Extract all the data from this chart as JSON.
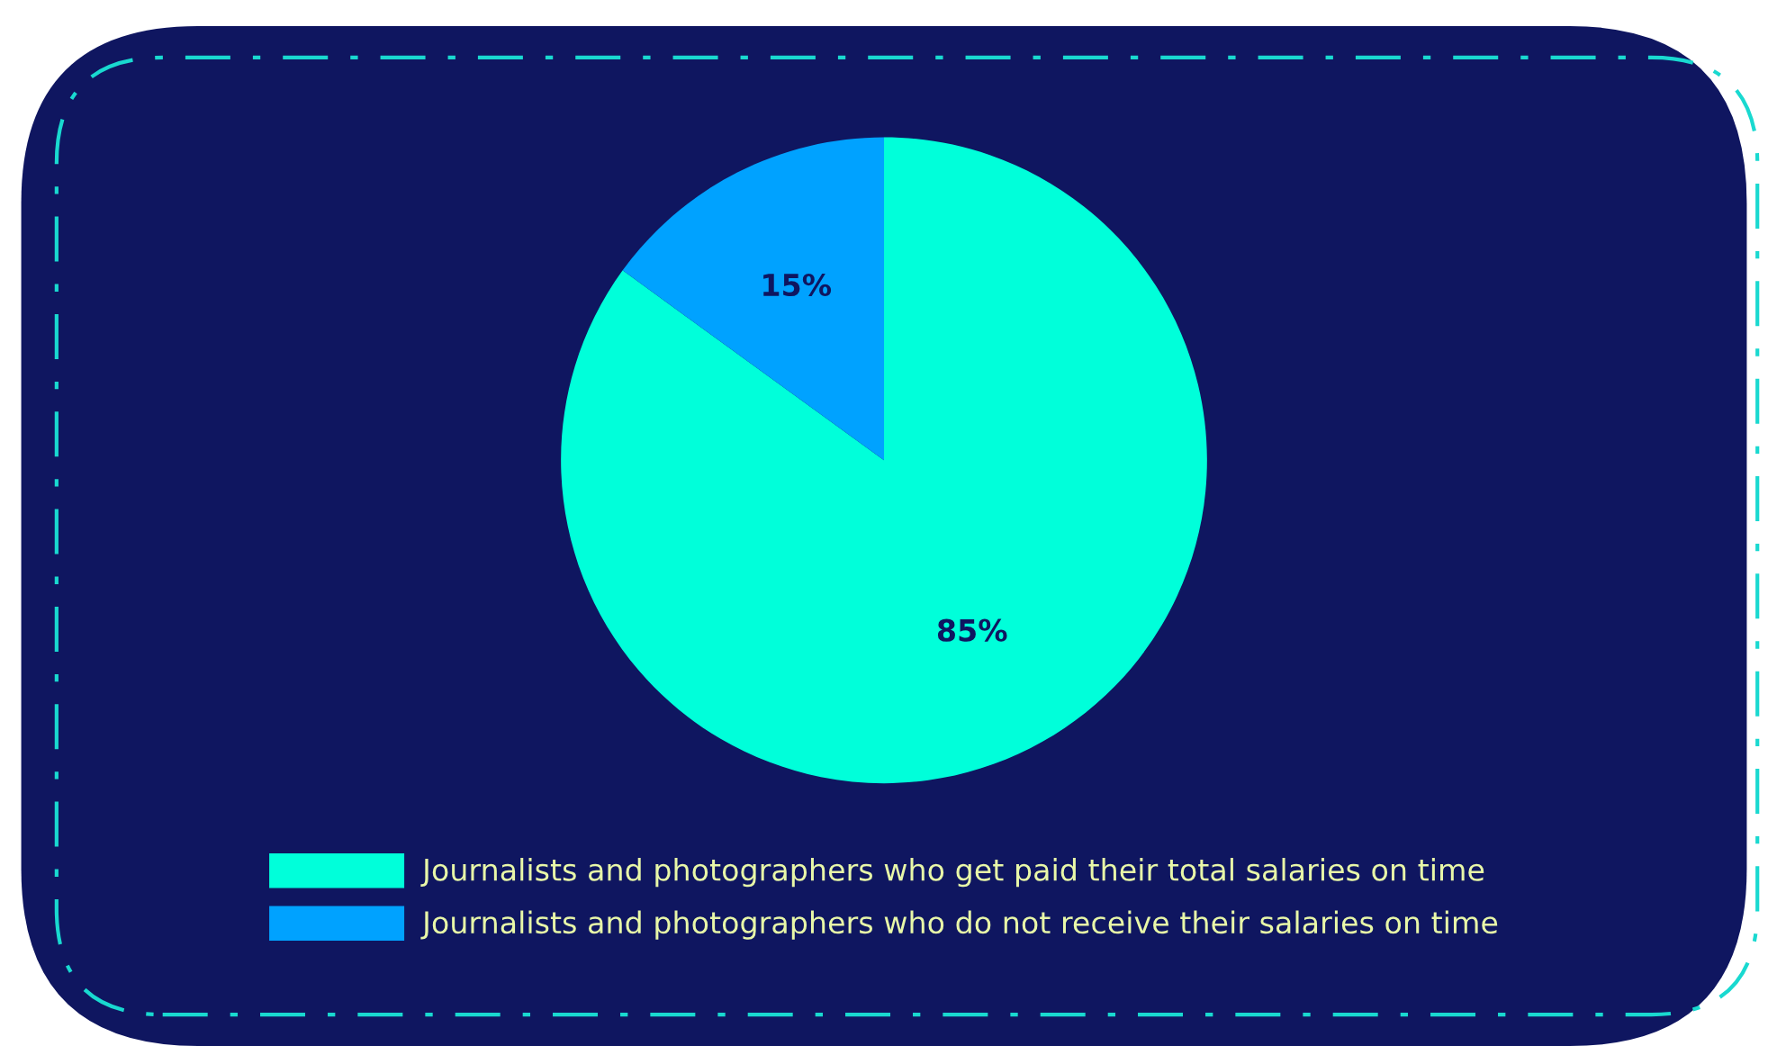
{
  "chart_data": {
    "type": "pie",
    "categories": [
      "Journalists and photographers who get paid their total salaries on time",
      "Journalists and photographers who do not receive their salaries on time"
    ],
    "values": [
      85,
      15
    ],
    "colors": [
      "#00ffda",
      "#00a2ff"
    ],
    "value_labels": [
      "85%",
      "15%"
    ],
    "legend": "bottom"
  }
}
